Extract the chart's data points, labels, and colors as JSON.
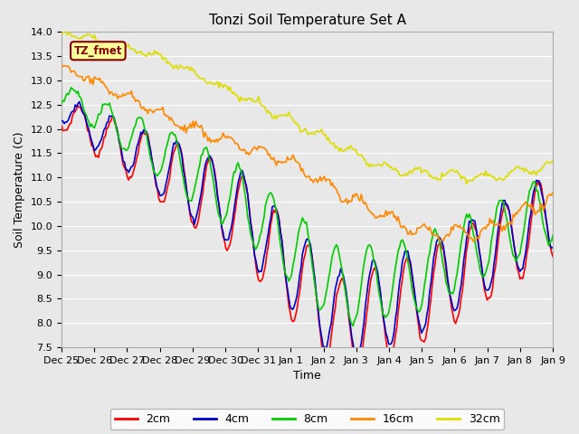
{
  "title": "Tonzi Soil Temperature Set A",
  "xlabel": "Time",
  "ylabel": "Soil Temperature (C)",
  "ylim": [
    7.5,
    14.0
  ],
  "yticks": [
    7.5,
    8.0,
    8.5,
    9.0,
    9.5,
    10.0,
    10.5,
    11.0,
    11.5,
    12.0,
    12.5,
    13.0,
    13.5,
    14.0
  ],
  "xtick_labels": [
    "Dec 25",
    "Dec 26",
    "Dec 27",
    "Dec 28",
    "Dec 29",
    "Dec 30",
    "Dec 31",
    "Jan 1",
    "Jan 2",
    "Jan 3",
    "Jan 4",
    "Jan 5",
    "Jan 6",
    "Jan 7",
    "Jan 8",
    "Jan 9"
  ],
  "line_colors": {
    "2cm": "#ff0000",
    "4cm": "#0000cc",
    "8cm": "#00cc00",
    "16cm": "#ff8800",
    "32cm": "#dddd00"
  },
  "line_widths": {
    "2cm": 1.2,
    "4cm": 1.2,
    "8cm": 1.2,
    "16cm": 1.2,
    "32cm": 1.2
  },
  "legend_label_box_color": "#ffff99",
  "legend_label_box_edge_color": "#880000",
  "legend_label_text": "TZ_fmet",
  "fig_bg_color": "#e8e8e8",
  "plot_bg_color": "#e8e8e8",
  "grid_color": "#ffffff",
  "title_fontsize": 11,
  "axis_fontsize": 9,
  "tick_fontsize": 8
}
